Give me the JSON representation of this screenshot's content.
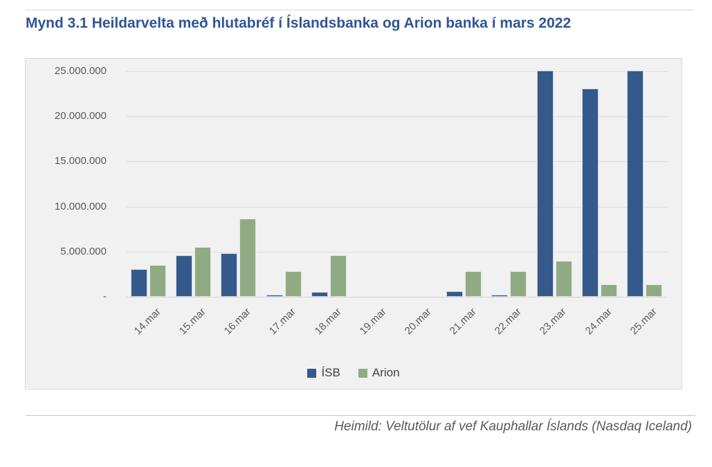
{
  "page": {
    "title": "Mynd 3.1 Heildarvelta með hlutabréf í Íslandsbanka og Arion banka í mars 2022",
    "source": "Heimild: Veltutölur af vef Kauphallar Íslands (Nasdaq Iceland)"
  },
  "colors": {
    "title_blue": "#2f5597",
    "isb_blue": "#36598c",
    "arion_green": "#90ab84",
    "plot_background": "#f1f1f1",
    "gridline": "#dedede",
    "axis_text": "#595959"
  },
  "chart_data": {
    "type": "bar",
    "title": "Mynd 3.1 Heildarvelta með hlutabréf í Íslandsbanka og Arion banka í mars 2022",
    "categories": [
      "14.mar",
      "15.mar",
      "16.mar",
      "17.mar",
      "18.mar",
      "19.mar",
      "20.mar",
      "21.mar",
      "22.mar",
      "23.mar",
      "24.mar",
      "25.mar"
    ],
    "series": [
      {
        "name": "ÍSB",
        "color": "#36598c",
        "values": [
          3100000,
          4600000,
          4800000,
          200000,
          500000,
          0,
          0,
          600000,
          250000,
          25100000,
          23100000,
          25100000
        ]
      },
      {
        "name": "Arion",
        "color": "#90ab84",
        "values": [
          3500000,
          5500000,
          8700000,
          2800000,
          4600000,
          0,
          0,
          2800000,
          2800000,
          4000000,
          1400000,
          1400000
        ]
      }
    ],
    "xlabel": "",
    "ylabel": "",
    "ylim": [
      0,
      25000000
    ],
    "grid": true,
    "legend_position": "bottom",
    "yticks": [
      {
        "label": "-",
        "value": 0
      },
      {
        "label": "5.000.000",
        "value": 5000000
      },
      {
        "label": "10.000.000",
        "value": 10000000
      },
      {
        "label": "15.000.000",
        "value": 15000000
      },
      {
        "label": "20.000.000",
        "value": 20000000
      },
      {
        "label": "25.000.000",
        "value": 25000000
      }
    ]
  }
}
